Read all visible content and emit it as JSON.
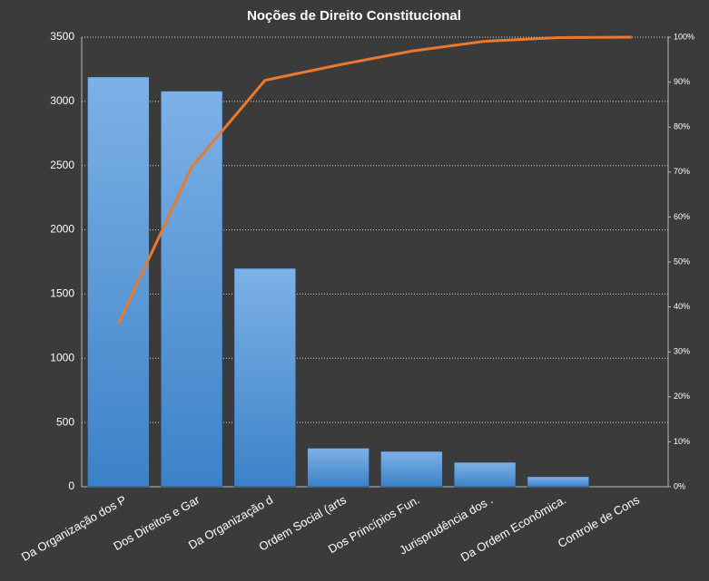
{
  "chart_data": {
    "type": "pareto",
    "title": "Noções de Direito  Constitucional",
    "categories": [
      "Da Organização dos P",
      "Dos Direitos e Gar",
      "Da Organização d",
      "Ordem Social (arts",
      "Dos Princípios Fun.",
      "Jurisprudência dos .",
      "Da Ordem Econômica.",
      "Controle de Cons"
    ],
    "series": [
      {
        "type": "bar",
        "color": "#4a8fd6",
        "values": [
          3190,
          3080,
          1700,
          300,
          275,
          190,
          78,
          0
        ]
      },
      {
        "type": "line",
        "color": "#e87a2e",
        "axis": "y2",
        "values": [
          36.2,
          71.1,
          90.4,
          93.8,
          96.9,
          99.1,
          99.9,
          100
        ]
      }
    ],
    "ylim": [
      0,
      3500
    ],
    "yticks": [
      0,
      500,
      1000,
      1500,
      2000,
      2500,
      3000,
      3500
    ],
    "y2lim": [
      0,
      100
    ],
    "y2ticks": [
      {
        "value": 0,
        "label": "0%"
      },
      {
        "value": 10,
        "label": "10%"
      },
      {
        "value": 20,
        "label": "20%"
      },
      {
        "value": 30,
        "label": "30%"
      },
      {
        "value": 40,
        "label": "40%"
      },
      {
        "value": 50,
        "label": "50%"
      },
      {
        "value": 60,
        "label": "60%"
      },
      {
        "value": 70,
        "label": "70%"
      },
      {
        "value": 80,
        "label": "80%"
      },
      {
        "value": 90,
        "label": "90%"
      },
      {
        "value": 100,
        "label": "100%"
      }
    ],
    "grid": true
  }
}
